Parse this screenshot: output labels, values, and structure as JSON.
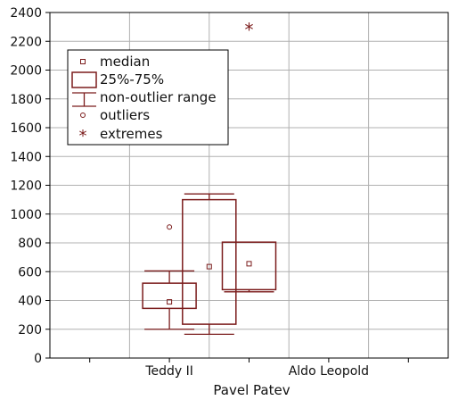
{
  "chart_data": {
    "type": "boxplot",
    "xlabel": "Pavel Patev",
    "ylabel": "",
    "ylim": [
      0,
      2400
    ],
    "yticks": [
      0,
      200,
      400,
      600,
      800,
      1000,
      1200,
      1400,
      1600,
      1800,
      2000,
      2200,
      2400
    ],
    "grid": true,
    "legend_position": "top-left",
    "categories": [
      "",
      "Teddy II",
      "",
      "Aldo Leopold",
      ""
    ],
    "tick_labels": [
      "Teddy II",
      "Aldo Leopold"
    ],
    "boxes": [
      {
        "position": 2,
        "median": 390,
        "q1": 345,
        "q3": 520,
        "whisker_low": 200,
        "whisker_high": 605,
        "outliers": [
          910
        ],
        "extremes": []
      },
      {
        "position": 2.5,
        "median": 635,
        "q1": 235,
        "q3": 1100,
        "whisker_low": 165,
        "whisker_high": 1140,
        "outliers": [],
        "extremes": []
      },
      {
        "position": 3,
        "median": 655,
        "q1": 475,
        "q3": 805,
        "whisker_low": 460,
        "whisker_high": 805,
        "outliers": [],
        "extremes": [
          2290
        ]
      }
    ],
    "legend": [
      {
        "symbol": "median",
        "label": "median"
      },
      {
        "symbol": "box",
        "label": "25%-75%"
      },
      {
        "symbol": "whisker",
        "label": "non-outlier range"
      },
      {
        "symbol": "outlier",
        "label": "outliers"
      },
      {
        "symbol": "extreme",
        "label": "extremes"
      }
    ],
    "colors": {
      "series": "#7b1c1c",
      "grid": "#b0b0b0",
      "axis": "#000000"
    }
  }
}
